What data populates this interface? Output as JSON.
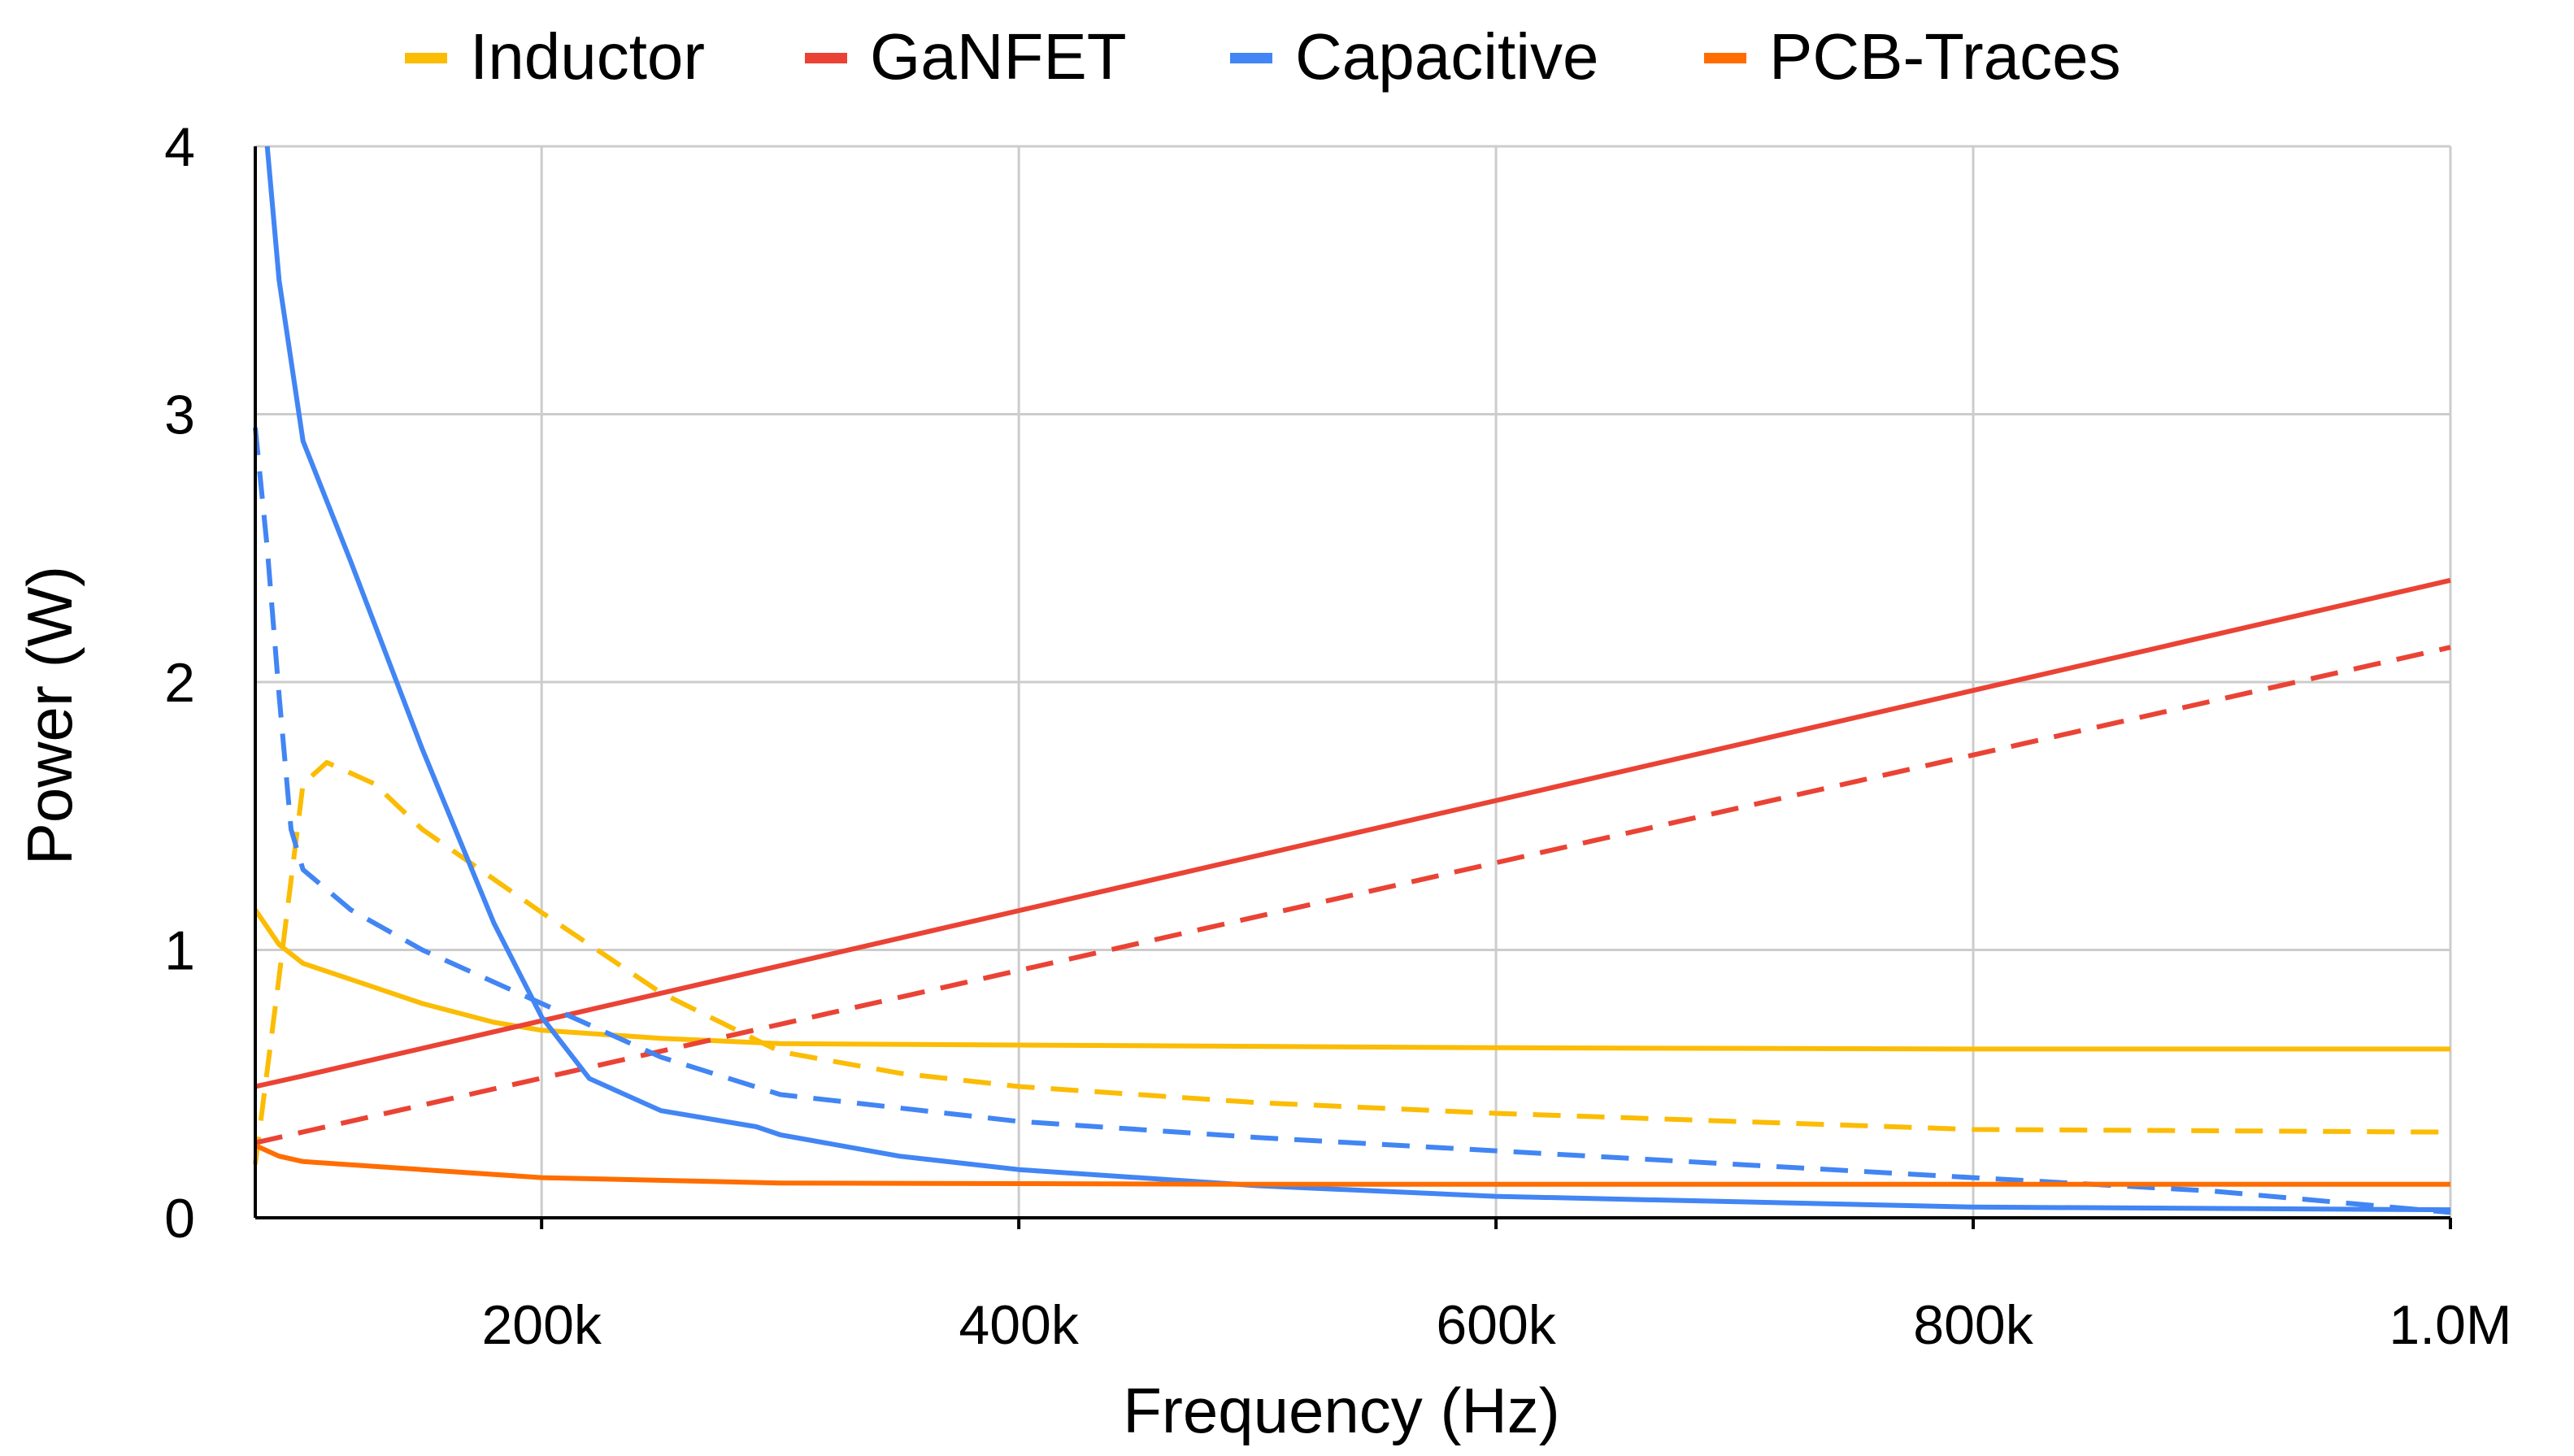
{
  "chart_data": {
    "type": "line",
    "xlabel": "Frequency (Hz)",
    "ylabel": "Power (W)",
    "xlim": [
      80000,
      1000000
    ],
    "ylim": [
      0,
      4
    ],
    "x_ticks": [
      200000,
      400000,
      600000,
      800000,
      1000000
    ],
    "x_tick_labels": [
      "200k",
      "400k",
      "600k",
      "800k",
      "1.0M"
    ],
    "y_ticks": [
      0,
      1,
      2,
      3,
      4
    ],
    "y_tick_labels": [
      "0",
      "1",
      "2",
      "3",
      "4"
    ],
    "grid": true,
    "legend_position": "top",
    "legend": [
      {
        "label": "Inductor",
        "color": "#FBBC04"
      },
      {
        "label": "GaNFET",
        "color": "#EA4335"
      },
      {
        "label": "Capacitive",
        "color": "#4285F4"
      },
      {
        "label": "PCB-Traces",
        "color": "#FF6D01"
      }
    ],
    "series": [
      {
        "component": "Inductor",
        "style": "solid",
        "color": "#FBBC04",
        "x": [
          80000,
          90000,
          100000,
          120000,
          150000,
          180000,
          200000,
          250000,
          300000,
          400000,
          500000,
          600000,
          800000,
          1000000
        ],
        "y": [
          1.15,
          1.02,
          0.95,
          0.89,
          0.8,
          0.73,
          0.7,
          0.67,
          0.65,
          0.645,
          0.64,
          0.635,
          0.63,
          0.63
        ]
      },
      {
        "component": "Inductor",
        "style": "dashed",
        "color": "#FBBC04",
        "x": [
          80000,
          90000,
          100000,
          110000,
          130000,
          150000,
          200000,
          250000,
          300000,
          350000,
          400000,
          500000,
          600000,
          800000,
          1000000
        ],
        "y": [
          0.2,
          0.9,
          1.62,
          1.7,
          1.62,
          1.45,
          1.14,
          0.84,
          0.62,
          0.54,
          0.49,
          0.43,
          0.39,
          0.33,
          0.32
        ]
      },
      {
        "component": "GaNFET",
        "style": "solid",
        "color": "#EA4335",
        "x": [
          80000,
          100000,
          1000000
        ],
        "y": [
          0.49,
          0.53,
          2.38
        ]
      },
      {
        "component": "GaNFET",
        "style": "dashed",
        "color": "#EA4335",
        "x": [
          80000,
          1000000
        ],
        "y": [
          0.28,
          2.13
        ]
      },
      {
        "component": "Capacitive",
        "style": "solid",
        "color": "#4285F4",
        "x": [
          85000,
          90000,
          95000,
          100000,
          120000,
          150000,
          180000,
          200000,
          220000,
          250000,
          290000,
          300000,
          350000,
          400000,
          500000,
          600000,
          800000,
          1000000
        ],
        "y": [
          4.0,
          3.5,
          3.2,
          2.9,
          2.45,
          1.75,
          1.1,
          0.75,
          0.52,
          0.4,
          0.34,
          0.31,
          0.23,
          0.18,
          0.12,
          0.08,
          0.04,
          0.03
        ]
      },
      {
        "component": "Capacitive",
        "style": "dashed",
        "color": "#4285F4",
        "x": [
          80000,
          85000,
          90000,
          95000,
          100000,
          120000,
          150000,
          200000,
          250000,
          300000,
          400000,
          500000,
          600000,
          700000,
          800000,
          900000,
          1000000
        ],
        "y": [
          2.95,
          2.5,
          1.95,
          1.45,
          1.3,
          1.15,
          1.0,
          0.8,
          0.6,
          0.46,
          0.36,
          0.3,
          0.25,
          0.2,
          0.15,
          0.1,
          0.02
        ]
      },
      {
        "component": "PCB-Traces",
        "style": "solid",
        "color": "#FF6D01",
        "x": [
          80000,
          90000,
          100000,
          150000,
          200000,
          300000,
          500000,
          800000,
          1000000
        ],
        "y": [
          0.27,
          0.23,
          0.21,
          0.18,
          0.15,
          0.13,
          0.125,
          0.125,
          0.125
        ]
      }
    ]
  }
}
